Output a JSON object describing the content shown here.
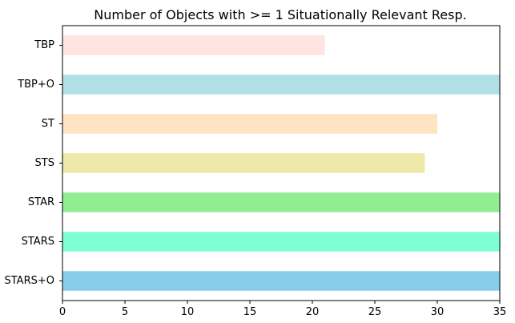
{
  "chart_data": {
    "type": "bar",
    "orientation": "horizontal",
    "title": "Number of Objects with >= 1 Situationally Relevant Resp.",
    "xlabel": "",
    "ylabel": "",
    "xlim": [
      0,
      35
    ],
    "xticks": [
      0,
      5,
      10,
      15,
      20,
      25,
      30,
      35
    ],
    "grid": false,
    "legend": "none",
    "categories": [
      "TBP",
      "TBP+O",
      "ST",
      "STS",
      "STAR",
      "STARS",
      "STARS+O"
    ],
    "values": [
      21,
      35,
      30,
      29,
      35,
      35,
      35
    ],
    "colors": [
      "#ffe4e1",
      "#b0e0e6",
      "#ffe4c4",
      "#eee8aa",
      "#90ee90",
      "#7fffd4",
      "#87ceeb"
    ]
  }
}
